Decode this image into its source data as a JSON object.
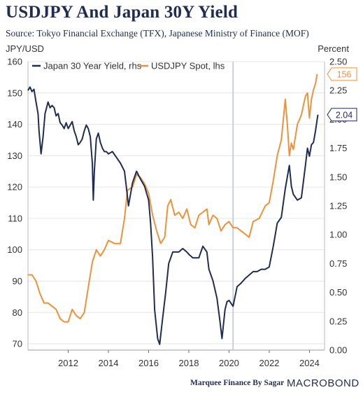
{
  "header": {
    "title": "USDJPY And Japan 30Y Yield",
    "subtitle": "Source: Tokyo Financial Exchange (TFX), Japanese Ministry of Finance (MOF)"
  },
  "footer": {
    "credit": "Marquee Finance By Sagar",
    "logo": "MACROBOND"
  },
  "colors": {
    "yield": "#1f2d52",
    "usdjpy": "#f0913a",
    "grid": "#e6e6e6",
    "vline": "#b8c3de"
  },
  "chart_data": {
    "type": "line",
    "y_left": {
      "label": "JPY/USD",
      "range": [
        68,
        160
      ],
      "ticks": [
        70,
        80,
        90,
        100,
        110,
        120,
        130,
        140,
        150,
        160
      ]
    },
    "y_right": {
      "label": "Percent",
      "range": [
        0,
        2.5
      ],
      "ticks": [
        "0.00",
        "0.25",
        "0.50",
        "0.75",
        "1.00",
        "1.25",
        "1.50",
        "1.75",
        "2.00",
        "2.25",
        "2.50"
      ]
    },
    "x_axis": {
      "range": [
        2010.0,
        2024.75
      ],
      "ticks": [
        "2012",
        "2014",
        "2016",
        "2018",
        "2020",
        "2022",
        "2024"
      ]
    },
    "vertical_line_at": 2020.2,
    "legend": {
      "placement": "top-left"
    },
    "series": [
      {
        "name": "Japan 30 Year Yield, rhs",
        "axis": "right",
        "end_label": "2.04",
        "points": [
          [
            2010.0,
            2.25
          ],
          [
            2010.1,
            2.28
          ],
          [
            2010.2,
            2.24
          ],
          [
            2010.3,
            2.26
          ],
          [
            2010.4,
            2.15
          ],
          [
            2010.5,
            2.05
          ],
          [
            2010.55,
            1.9
          ],
          [
            2010.65,
            1.7
          ],
          [
            2010.75,
            1.85
          ],
          [
            2010.85,
            2.05
          ],
          [
            2011.0,
            2.15
          ],
          [
            2011.1,
            2.1
          ],
          [
            2011.2,
            2.12
          ],
          [
            2011.3,
            2.1
          ],
          [
            2011.4,
            2.03
          ],
          [
            2011.5,
            2.05
          ],
          [
            2011.6,
            1.97
          ],
          [
            2011.7,
            1.95
          ],
          [
            2011.8,
            1.92
          ],
          [
            2011.9,
            1.97
          ],
          [
            2012.0,
            1.92
          ],
          [
            2012.1,
            1.95
          ],
          [
            2012.2,
            1.98
          ],
          [
            2012.3,
            1.9
          ],
          [
            2012.4,
            1.85
          ],
          [
            2012.5,
            1.78
          ],
          [
            2012.6,
            1.8
          ],
          [
            2012.7,
            1.83
          ],
          [
            2012.8,
            1.9
          ],
          [
            2012.9,
            1.95
          ],
          [
            2013.0,
            1.92
          ],
          [
            2013.1,
            1.85
          ],
          [
            2013.2,
            1.62
          ],
          [
            2013.25,
            1.3
          ],
          [
            2013.3,
            1.55
          ],
          [
            2013.4,
            1.83
          ],
          [
            2013.5,
            1.88
          ],
          [
            2013.6,
            1.8
          ],
          [
            2013.7,
            1.75
          ],
          [
            2013.8,
            1.72
          ],
          [
            2013.9,
            1.72
          ],
          [
            2014.0,
            1.7
          ],
          [
            2014.2,
            1.72
          ],
          [
            2014.4,
            1.67
          ],
          [
            2014.6,
            1.62
          ],
          [
            2014.8,
            1.55
          ],
          [
            2014.9,
            1.4
          ],
          [
            2015.0,
            1.25
          ],
          [
            2015.1,
            1.35
          ],
          [
            2015.2,
            1.45
          ],
          [
            2015.4,
            1.55
          ],
          [
            2015.6,
            1.48
          ],
          [
            2015.8,
            1.42
          ],
          [
            2016.0,
            1.3
          ],
          [
            2016.1,
            1.1
          ],
          [
            2016.2,
            0.8
          ],
          [
            2016.3,
            0.35
          ],
          [
            2016.45,
            0.1
          ],
          [
            2016.55,
            0.05
          ],
          [
            2016.7,
            0.28
          ],
          [
            2016.85,
            0.5
          ],
          [
            2017.0,
            0.75
          ],
          [
            2017.2,
            0.85
          ],
          [
            2017.5,
            0.85
          ],
          [
            2017.7,
            0.88
          ],
          [
            2017.9,
            0.85
          ],
          [
            2018.0,
            0.83
          ],
          [
            2018.2,
            0.8
          ],
          [
            2018.5,
            0.8
          ],
          [
            2018.7,
            0.9
          ],
          [
            2018.9,
            0.85
          ],
          [
            2019.0,
            0.7
          ],
          [
            2019.2,
            0.6
          ],
          [
            2019.4,
            0.45
          ],
          [
            2019.55,
            0.25
          ],
          [
            2019.65,
            0.1
          ],
          [
            2019.8,
            0.35
          ],
          [
            2019.9,
            0.42
          ],
          [
            2020.0,
            0.43
          ],
          [
            2020.2,
            0.38
          ],
          [
            2020.4,
            0.55
          ],
          [
            2020.6,
            0.58
          ],
          [
            2020.8,
            0.62
          ],
          [
            2021.0,
            0.65
          ],
          [
            2021.2,
            0.68
          ],
          [
            2021.4,
            0.68
          ],
          [
            2021.6,
            0.7
          ],
          [
            2021.8,
            0.7
          ],
          [
            2022.0,
            0.72
          ],
          [
            2022.2,
            0.9
          ],
          [
            2022.4,
            1.1
          ],
          [
            2022.6,
            1.15
          ],
          [
            2022.8,
            1.4
          ],
          [
            2023.0,
            1.6
          ],
          [
            2023.1,
            1.42
          ],
          [
            2023.2,
            1.35
          ],
          [
            2023.4,
            1.3
          ],
          [
            2023.6,
            1.32
          ],
          [
            2023.8,
            1.6
          ],
          [
            2023.9,
            1.75
          ],
          [
            2024.0,
            1.68
          ],
          [
            2024.1,
            1.78
          ],
          [
            2024.2,
            1.8
          ],
          [
            2024.3,
            1.9
          ],
          [
            2024.42,
            2.04
          ]
        ]
      },
      {
        "name": "USDJPY Spot, lhs",
        "axis": "left",
        "end_label": "156",
        "points": [
          [
            2010.0,
            92
          ],
          [
            2010.2,
            92
          ],
          [
            2010.4,
            90
          ],
          [
            2010.6,
            86
          ],
          [
            2010.8,
            83
          ],
          [
            2011.0,
            83
          ],
          [
            2011.2,
            82
          ],
          [
            2011.4,
            81
          ],
          [
            2011.6,
            78
          ],
          [
            2011.8,
            77
          ],
          [
            2012.0,
            77
          ],
          [
            2012.2,
            81
          ],
          [
            2012.4,
            79
          ],
          [
            2012.6,
            78
          ],
          [
            2012.8,
            80
          ],
          [
            2013.0,
            88
          ],
          [
            2013.2,
            96
          ],
          [
            2013.4,
            100
          ],
          [
            2013.6,
            98
          ],
          [
            2013.8,
            100
          ],
          [
            2014.0,
            103
          ],
          [
            2014.3,
            102
          ],
          [
            2014.6,
            102
          ],
          [
            2014.8,
            110
          ],
          [
            2014.95,
            119
          ],
          [
            2015.2,
            120
          ],
          [
            2015.4,
            124
          ],
          [
            2015.6,
            123
          ],
          [
            2015.8,
            121
          ],
          [
            2016.0,
            118
          ],
          [
            2016.2,
            111
          ],
          [
            2016.4,
            106
          ],
          [
            2016.6,
            102
          ],
          [
            2016.8,
            104
          ],
          [
            2016.95,
            114
          ],
          [
            2017.1,
            116
          ],
          [
            2017.3,
            111
          ],
          [
            2017.5,
            112
          ],
          [
            2017.7,
            110
          ],
          [
            2017.9,
            113
          ],
          [
            2018.1,
            108
          ],
          [
            2018.3,
            107
          ],
          [
            2018.5,
            111
          ],
          [
            2018.7,
            112
          ],
          [
            2018.9,
            113
          ],
          [
            2019.0,
            108
          ],
          [
            2019.2,
            111
          ],
          [
            2019.4,
            110
          ],
          [
            2019.6,
            106
          ],
          [
            2019.8,
            108
          ],
          [
            2020.0,
            109
          ],
          [
            2020.2,
            107
          ],
          [
            2020.4,
            107
          ],
          [
            2020.6,
            106
          ],
          [
            2020.8,
            105
          ],
          [
            2021.0,
            104
          ],
          [
            2021.2,
            109
          ],
          [
            2021.5,
            110
          ],
          [
            2021.8,
            114
          ],
          [
            2022.0,
            115
          ],
          [
            2022.2,
            122
          ],
          [
            2022.4,
            130
          ],
          [
            2022.6,
            135
          ],
          [
            2022.8,
            148
          ],
          [
            2022.9,
            140
          ],
          [
            2023.0,
            130
          ],
          [
            2023.1,
            134
          ],
          [
            2023.2,
            132
          ],
          [
            2023.4,
            140
          ],
          [
            2023.6,
            143
          ],
          [
            2023.8,
            149
          ],
          [
            2023.9,
            150
          ],
          [
            2024.0,
            142
          ],
          [
            2024.1,
            148
          ],
          [
            2024.2,
            151
          ],
          [
            2024.3,
            153
          ],
          [
            2024.38,
            156
          ]
        ]
      }
    ]
  }
}
